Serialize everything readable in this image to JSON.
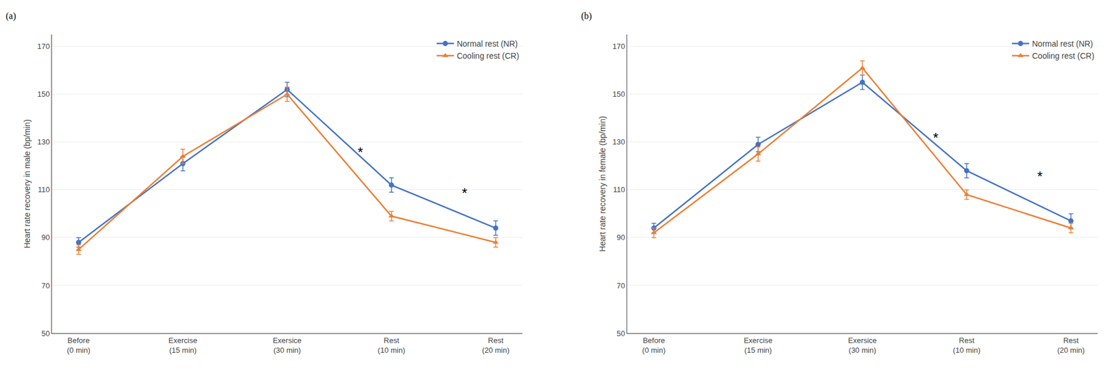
{
  "chart_data": [
    {
      "type": "line",
      "panel_label": "(a)",
      "ylabel": "Heart rate recovery in male (bp/min)",
      "categories": [
        "Before\n(0 min)",
        "Exercise\n(15 min)",
        "Exersice\n(30 min)",
        "Rest\n(10 min)",
        "Rest\n(20 min)"
      ],
      "series": [
        {
          "name": "Normal rest (NR)",
          "color": "#4472C4",
          "marker": "circle",
          "values": [
            88,
            121,
            152,
            112,
            94
          ],
          "errors": [
            2,
            3,
            3,
            3,
            3
          ]
        },
        {
          "name": "Cooling rest (CR)",
          "color": "#ED7D31",
          "marker": "triangle-up",
          "values": [
            85,
            124,
            150,
            99,
            88
          ],
          "errors": [
            2,
            3,
            3,
            2,
            2
          ]
        }
      ],
      "annotations": [
        {
          "text": "*",
          "x": 3,
          "y": 122
        },
        {
          "text": "*",
          "x": 4,
          "y": 105
        }
      ],
      "ylim": [
        50,
        175
      ],
      "yticks": [
        50,
        70,
        90,
        110,
        130,
        150,
        170
      ],
      "grid": true,
      "legend": "upper right"
    },
    {
      "type": "line",
      "panel_label": "(b)",
      "ylabel": "Heart rate recovery in female (bp/min)",
      "categories": [
        "Before\n(0 min)",
        "Exercise\n(15 min)",
        "Exersice\n(30 min)",
        "Rest\n(10 min)",
        "Rest\n(20 min)"
      ],
      "series": [
        {
          "name": "Normal rest (NR)",
          "color": "#4472C4",
          "marker": "circle",
          "values": [
            94,
            129,
            155,
            118,
            97
          ],
          "errors": [
            2,
            3,
            3,
            3,
            3
          ]
        },
        {
          "name": "Cooling rest (CR)",
          "color": "#ED7D31",
          "marker": "triangle-up",
          "values": [
            92,
            125,
            161,
            108,
            94
          ],
          "errors": [
            2,
            3,
            3,
            2,
            2
          ]
        }
      ],
      "annotations": [
        {
          "text": "*",
          "x": 3,
          "y": 128
        },
        {
          "text": "*",
          "x": 4,
          "y": 112
        }
      ],
      "ylim": [
        50,
        175
      ],
      "yticks": [
        50,
        70,
        90,
        110,
        130,
        150,
        170
      ],
      "grid": true,
      "legend": "upper right"
    }
  ]
}
